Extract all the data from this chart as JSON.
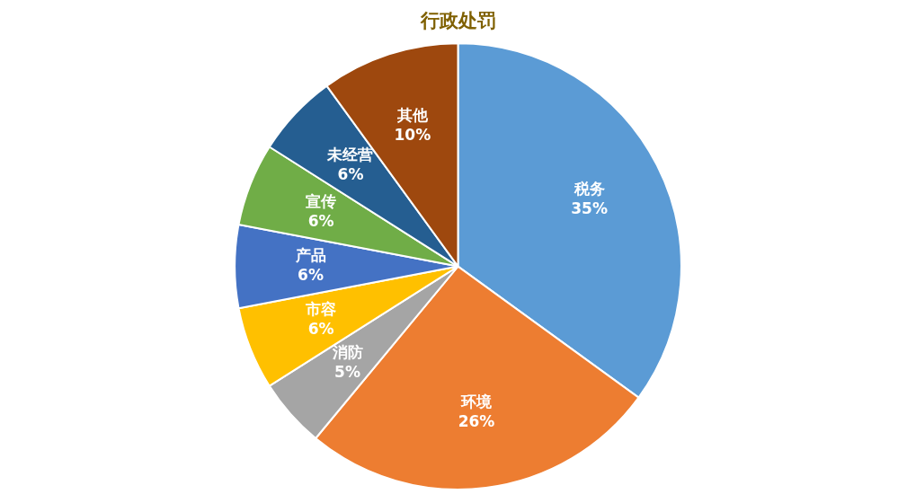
{
  "chart_data": {
    "type": "pie",
    "title": "行政处罚",
    "categories": [
      "税务",
      "环境",
      "消防",
      "市容",
      "产品",
      "宣传",
      "未经营",
      "其他"
    ],
    "values": [
      35,
      26,
      5,
      6,
      6,
      6,
      6,
      10
    ],
    "value_labels": [
      "35%",
      "26%",
      "5%",
      "6%",
      "6%",
      "6%",
      "6%",
      "10%"
    ],
    "colors": [
      "#5b9bd5",
      "#ed7d31",
      "#a5a5a5",
      "#ffc000",
      "#4472c4",
      "#70ad47",
      "#255e91",
      "#9e480e"
    ],
    "legend": false
  }
}
